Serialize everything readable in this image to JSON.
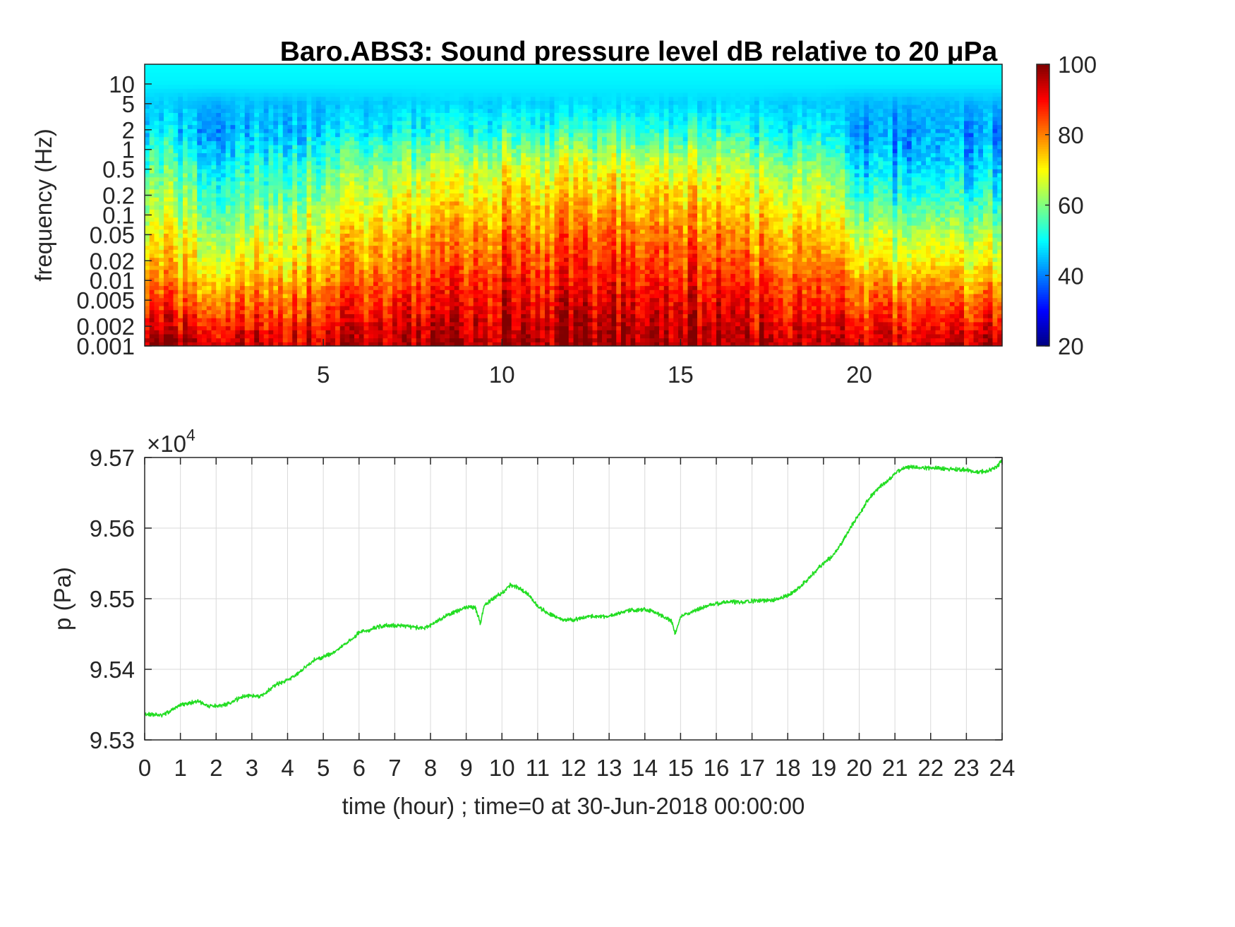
{
  "chart_data": [
    {
      "type": "heatmap",
      "title": "Baro.ABS3: Sound pressure level dB relative to 20 μPa",
      "xlabel": "",
      "ylabel": "frequency (Hz)",
      "x_ticks": [
        5,
        10,
        15,
        20
      ],
      "x_tick_labels": [
        "5",
        "10",
        "15",
        "20"
      ],
      "xlim": [
        0,
        24
      ],
      "y_scale": "log",
      "ylim": [
        0.001,
        20
      ],
      "y_ticks": [
        0.001,
        0.002,
        0.005,
        0.01,
        0.02,
        0.05,
        0.1,
        0.2,
        0.5,
        1,
        2,
        5,
        10
      ],
      "y_tick_labels": [
        "0.001",
        "0.002",
        "0.005",
        "0.01",
        "0.02",
        "0.05",
        "0.1",
        "0.2",
        "0.5",
        "1",
        "2",
        "5",
        "10"
      ],
      "colormap": "jet",
      "colorbar": {
        "range": [
          20,
          100
        ],
        "ticks": [
          20,
          40,
          60,
          80,
          100
        ],
        "tick_labels": [
          "20",
          "40",
          "60",
          "80",
          "100"
        ]
      },
      "approx_level_profile_dB": {
        "frequency_Hz": [
          0.001,
          0.002,
          0.005,
          0.01,
          0.02,
          0.05,
          0.1,
          0.2,
          0.5,
          1,
          2,
          5,
          10,
          20
        ],
        "time_hour": [
          0,
          1,
          2,
          3,
          4,
          5,
          6,
          7,
          8,
          9,
          10,
          11,
          12,
          13,
          14,
          15,
          16,
          17,
          18,
          19,
          20,
          21,
          22,
          23,
          24
        ],
        "level_dB": [
          [
            99,
            92,
            86,
            80,
            75,
            70,
            66,
            62,
            57,
            52,
            48,
            46,
            49,
            50
          ],
          [
            96,
            90,
            82,
            76,
            72,
            68,
            64,
            60,
            55,
            50,
            46,
            45,
            49,
            50
          ],
          [
            94,
            88,
            80,
            74,
            68,
            63,
            58,
            54,
            50,
            46,
            43,
            44,
            49,
            50
          ],
          [
            94,
            88,
            81,
            75,
            70,
            65,
            60,
            56,
            52,
            47,
            44,
            45,
            49,
            50
          ],
          [
            94,
            89,
            82,
            77,
            72,
            68,
            64,
            60,
            55,
            50,
            46,
            45,
            49,
            50
          ],
          [
            95,
            90,
            84,
            79,
            74,
            70,
            66,
            62,
            57,
            52,
            47,
            45,
            49,
            50
          ],
          [
            95,
            91,
            85,
            81,
            77,
            73,
            69,
            65,
            60,
            54,
            48,
            46,
            49,
            50
          ],
          [
            96,
            92,
            87,
            83,
            79,
            75,
            71,
            67,
            62,
            56,
            50,
            46,
            49,
            50
          ],
          [
            96,
            93,
            88,
            85,
            81,
            77,
            73,
            69,
            64,
            58,
            51,
            47,
            49,
            50
          ],
          [
            97,
            94,
            90,
            87,
            83,
            79,
            75,
            71,
            66,
            60,
            52,
            47,
            49,
            50
          ],
          [
            97,
            95,
            91,
            88,
            85,
            81,
            77,
            73,
            68,
            61,
            53,
            47,
            49,
            50
          ],
          [
            97,
            95,
            91,
            88,
            85,
            81,
            77,
            73,
            68,
            61,
            53,
            47,
            49,
            50
          ],
          [
            97,
            95,
            91,
            88,
            85,
            81,
            77,
            73,
            68,
            61,
            53,
            47,
            49,
            50
          ],
          [
            97,
            95,
            91,
            88,
            85,
            81,
            77,
            73,
            68,
            61,
            53,
            47,
            49,
            50
          ],
          [
            97,
            95,
            91,
            88,
            85,
            81,
            77,
            73,
            68,
            61,
            53,
            47,
            49,
            50
          ],
          [
            97,
            95,
            91,
            88,
            85,
            81,
            77,
            73,
            68,
            61,
            53,
            47,
            49,
            50
          ],
          [
            96,
            94,
            90,
            87,
            83,
            79,
            75,
            71,
            66,
            60,
            52,
            47,
            49,
            50
          ],
          [
            96,
            93,
            89,
            86,
            82,
            78,
            74,
            70,
            65,
            58,
            51,
            47,
            49,
            50
          ],
          [
            95,
            92,
            88,
            84,
            80,
            76,
            72,
            68,
            63,
            56,
            50,
            46,
            49,
            50
          ],
          [
            95,
            91,
            86,
            82,
            78,
            74,
            70,
            66,
            61,
            55,
            49,
            46,
            49,
            50
          ],
          [
            94,
            89,
            83,
            78,
            72,
            66,
            60,
            54,
            48,
            44,
            42,
            44,
            49,
            50
          ],
          [
            93,
            88,
            82,
            76,
            70,
            64,
            58,
            52,
            47,
            43,
            42,
            44,
            49,
            50
          ],
          [
            93,
            88,
            82,
            76,
            70,
            64,
            58,
            52,
            47,
            43,
            42,
            44,
            49,
            50
          ],
          [
            94,
            88,
            81,
            75,
            69,
            63,
            57,
            52,
            47,
            43,
            42,
            44,
            49,
            50
          ],
          [
            96,
            89,
            81,
            75,
            68,
            62,
            56,
            51,
            46,
            42,
            41,
            44,
            49,
            50
          ]
        ]
      }
    },
    {
      "type": "line",
      "xlabel": "time (hour) ; time=0 at 30-Jun-2018 00:00:00",
      "ylabel": "p (Pa)",
      "y_multiplier_label": "×10",
      "y_multiplier_exponent": "4",
      "xlim": [
        0,
        24
      ],
      "ylim": [
        95300,
        95700
      ],
      "x_ticks": [
        0,
        1,
        2,
        3,
        4,
        5,
        6,
        7,
        8,
        9,
        10,
        11,
        12,
        13,
        14,
        15,
        16,
        17,
        18,
        19,
        20,
        21,
        22,
        23,
        24
      ],
      "x_tick_labels": [
        "0",
        "1",
        "2",
        "3",
        "4",
        "5",
        "6",
        "7",
        "8",
        "9",
        "10",
        "11",
        "12",
        "13",
        "14",
        "15",
        "16",
        "17",
        "18",
        "19",
        "20",
        "21",
        "22",
        "23",
        "24"
      ],
      "y_ticks": [
        95300,
        95400,
        95500,
        95600,
        95700
      ],
      "y_tick_labels": [
        "9.53",
        "9.54",
        "9.55",
        "9.56",
        "9.57"
      ],
      "grid": true,
      "series": [
        {
          "color": "#22dd22",
          "x": [
            0,
            0.25,
            0.5,
            0.75,
            1,
            1.25,
            1.5,
            1.75,
            2,
            2.25,
            2.5,
            2.75,
            3,
            3.25,
            3.5,
            3.75,
            4,
            4.25,
            4.5,
            4.75,
            5,
            5.25,
            5.5,
            5.75,
            6,
            6.25,
            6.5,
            6.75,
            7,
            7.25,
            7.5,
            7.75,
            8,
            8.25,
            8.5,
            8.75,
            9,
            9.25,
            9.4,
            9.5,
            9.75,
            10,
            10.25,
            10.5,
            10.75,
            11,
            11.25,
            11.5,
            11.75,
            12,
            12.25,
            12.5,
            12.75,
            13,
            13.25,
            13.5,
            13.75,
            14,
            14.25,
            14.5,
            14.75,
            14.85,
            15,
            15.25,
            15.5,
            15.75,
            16,
            16.25,
            16.5,
            16.75,
            17,
            17.25,
            17.5,
            17.75,
            18,
            18.25,
            18.5,
            18.75,
            19,
            19.25,
            19.5,
            19.75,
            20,
            20.25,
            20.5,
            20.75,
            21,
            21.25,
            21.5,
            21.75,
            22,
            22.25,
            22.5,
            22.75,
            23,
            23.25,
            23.5,
            23.75,
            24
          ],
          "y": [
            95337,
            95335,
            95335,
            95342,
            95350,
            95352,
            95355,
            95348,
            95348,
            95350,
            95355,
            95362,
            95362,
            95362,
            95372,
            95380,
            95385,
            95393,
            95403,
            95413,
            95418,
            95422,
            95432,
            95440,
            95452,
            95455,
            95460,
            95462,
            95462,
            95462,
            95460,
            95458,
            95462,
            95470,
            95478,
            95483,
            95488,
            95488,
            95465,
            95490,
            95500,
            95508,
            95520,
            95515,
            95505,
            95490,
            95480,
            95475,
            95470,
            95470,
            95473,
            95475,
            95475,
            95475,
            95480,
            95483,
            95483,
            95485,
            95482,
            95475,
            95468,
            95450,
            95475,
            95480,
            95485,
            95490,
            95493,
            95495,
            95495,
            95495,
            95497,
            95497,
            95497,
            95500,
            95505,
            95512,
            95525,
            95538,
            95550,
            95560,
            95578,
            95600,
            95620,
            95640,
            95655,
            95665,
            95678,
            95685,
            95687,
            95685,
            95685,
            95685,
            95683,
            95683,
            95683,
            95680,
            95680,
            95683,
            95695
          ]
        }
      ]
    }
  ]
}
